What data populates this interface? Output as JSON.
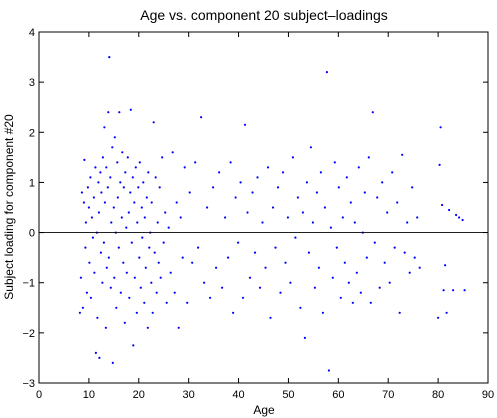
{
  "chart_data": {
    "type": "scatter",
    "title": "Age vs. component 20 subject–loadings",
    "xlabel": "Age",
    "ylabel": "Subject loading for component #20",
    "xlim": [
      0,
      90
    ],
    "ylim": [
      -3,
      4
    ],
    "xticks": [
      0,
      10,
      20,
      30,
      40,
      50,
      60,
      70,
      80,
      90
    ],
    "yticks": [
      -3,
      -2,
      -1,
      0,
      1,
      2,
      3,
      4
    ],
    "grid": false,
    "reference_line_y": 0,
    "marker_color": "#0000ff",
    "axis_color": "#000000",
    "points": [
      [
        8.2,
        -1.6
      ],
      [
        8.4,
        -0.9
      ],
      [
        8.6,
        0.8
      ],
      [
        8.8,
        -1.5
      ],
      [
        9.0,
        0.6
      ],
      [
        9.1,
        1.45
      ],
      [
        9.3,
        -0.3
      ],
      [
        9.4,
        0.2
      ],
      [
        9.6,
        -1.2
      ],
      [
        9.8,
        0.9
      ],
      [
        10.0,
        0.5
      ],
      [
        10.1,
        -0.6
      ],
      [
        10.3,
        1.1
      ],
      [
        10.4,
        -1.3
      ],
      [
        10.6,
        0.3
      ],
      [
        10.8,
        -0.1
      ],
      [
        11.0,
        0.7
      ],
      [
        11.1,
        -0.8
      ],
      [
        11.3,
        1.3
      ],
      [
        11.4,
        -2.4
      ],
      [
        11.6,
        0.0
      ],
      [
        11.7,
        -1.7
      ],
      [
        11.9,
        1.0
      ],
      [
        12.0,
        0.4
      ],
      [
        12.1,
        -2.5
      ],
      [
        12.3,
        1.2
      ],
      [
        12.4,
        -0.4
      ],
      [
        12.5,
        0.8
      ],
      [
        12.7,
        -1.0
      ],
      [
        12.8,
        1.5
      ],
      [
        13.0,
        -0.2
      ],
      [
        13.1,
        2.1
      ],
      [
        13.2,
        0.6
      ],
      [
        13.4,
        -1.9
      ],
      [
        13.5,
        1.3
      ],
      [
        13.6,
        -0.7
      ],
      [
        13.8,
        0.9
      ],
      [
        13.9,
        2.4
      ],
      [
        14.0,
        -0.5
      ],
      [
        14.1,
        3.5
      ],
      [
        14.3,
        1.1
      ],
      [
        14.4,
        -1.1
      ],
      [
        14.5,
        0.2
      ],
      [
        14.7,
        1.7
      ],
      [
        14.8,
        -2.6
      ],
      [
        15.0,
        0.5
      ],
      [
        15.1,
        -0.9
      ],
      [
        15.2,
        1.9
      ],
      [
        15.4,
        0.0
      ],
      [
        15.5,
        -1.5
      ],
      [
        15.7,
        1.4
      ],
      [
        15.8,
        0.7
      ],
      [
        16.0,
        -0.3
      ],
      [
        16.1,
        2.4
      ],
      [
        16.3,
        1.0
      ],
      [
        16.4,
        -1.2
      ],
      [
        16.6,
        0.3
      ],
      [
        16.7,
        1.6
      ],
      [
        16.9,
        -0.6
      ],
      [
        17.0,
        0.9
      ],
      [
        17.2,
        -1.8
      ],
      [
        17.3,
        1.2
      ],
      [
        17.5,
        0.1
      ],
      [
        17.6,
        -0.8
      ],
      [
        17.8,
        1.5
      ],
      [
        18.0,
        0.4
      ],
      [
        18.1,
        -1.3
      ],
      [
        18.3,
        0.8
      ],
      [
        18.4,
        2.45
      ],
      [
        18.6,
        -0.2
      ],
      [
        18.8,
        1.1
      ],
      [
        18.9,
        -2.25
      ],
      [
        19.1,
        0.6
      ],
      [
        19.2,
        -0.9
      ],
      [
        19.4,
        1.3
      ],
      [
        19.6,
        -1.6
      ],
      [
        19.7,
        0.2
      ],
      [
        19.9,
        0.9
      ],
      [
        20.1,
        -0.5
      ],
      [
        20.2,
        1.4
      ],
      [
        20.4,
        -1.1
      ],
      [
        20.6,
        0.5
      ],
      [
        20.7,
        -0.1
      ],
      [
        20.9,
        1.0
      ],
      [
        21.1,
        -1.4
      ],
      [
        21.2,
        0.3
      ],
      [
        21.4,
        -0.7
      ],
      [
        21.6,
        0.7
      ],
      [
        21.8,
        -1.9
      ],
      [
        21.9,
        1.2
      ],
      [
        22.1,
        -0.3
      ],
      [
        22.3,
        0.0
      ],
      [
        22.5,
        -1.0
      ],
      [
        22.6,
        0.6
      ],
      [
        22.8,
        -1.6
      ],
      [
        23.0,
        2.2
      ],
      [
        23.2,
        -0.4
      ],
      [
        23.4,
        1.1
      ],
      [
        23.6,
        -1.2
      ],
      [
        23.8,
        0.2
      ],
      [
        24.0,
        -0.6
      ],
      [
        24.2,
        0.9
      ],
      [
        24.4,
        -0.9
      ],
      [
        24.7,
        1.5
      ],
      [
        25.0,
        -0.2
      ],
      [
        25.3,
        0.4
      ],
      [
        25.6,
        -1.4
      ],
      [
        26.0,
        0.1
      ],
      [
        26.4,
        -0.8
      ],
      [
        26.8,
        1.6
      ],
      [
        27.2,
        -1.2
      ],
      [
        27.6,
        0.6
      ],
      [
        28.0,
        -1.9
      ],
      [
        28.4,
        0.3
      ],
      [
        28.8,
        -0.5
      ],
      [
        29.2,
        1.3
      ],
      [
        29.7,
        -1.4
      ],
      [
        30.2,
        0.8
      ],
      [
        30.7,
        -0.6
      ],
      [
        31.3,
        1.4
      ],
      [
        31.9,
        -0.3
      ],
      [
        32.5,
        2.3
      ],
      [
        33.1,
        -1.0
      ],
      [
        33.7,
        0.5
      ],
      [
        34.3,
        -1.3
      ],
      [
        34.9,
        0.9
      ],
      [
        35.5,
        -0.7
      ],
      [
        36.1,
        1.2
      ],
      [
        36.7,
        -1.1
      ],
      [
        37.3,
        0.3
      ],
      [
        37.9,
        -0.5
      ],
      [
        38.4,
        1.4
      ],
      [
        38.9,
        -1.6
      ],
      [
        39.4,
        0.7
      ],
      [
        39.9,
        -0.2
      ],
      [
        40.4,
        1.0
      ],
      [
        40.9,
        -1.3
      ],
      [
        41.3,
        2.15
      ],
      [
        41.8,
        0.4
      ],
      [
        42.3,
        -0.9
      ],
      [
        42.8,
        0.8
      ],
      [
        43.3,
        -0.4
      ],
      [
        43.8,
        1.1
      ],
      [
        44.3,
        -1.1
      ],
      [
        44.8,
        0.2
      ],
      [
        45.4,
        -0.7
      ],
      [
        45.9,
        1.3
      ],
      [
        46.4,
        -1.7
      ],
      [
        46.9,
        0.5
      ],
      [
        47.4,
        -0.3
      ],
      [
        47.9,
        0.9
      ],
      [
        48.4,
        -1.2
      ],
      [
        48.9,
        1.2
      ],
      [
        49.4,
        -0.6
      ],
      [
        49.9,
        0.3
      ],
      [
        50.4,
        -1.0
      ],
      [
        50.9,
        1.5
      ],
      [
        51.4,
        -0.1
      ],
      [
        51.9,
        0.7
      ],
      [
        52.4,
        -1.5
      ],
      [
        52.9,
        0.4
      ],
      [
        53.3,
        -2.1
      ],
      [
        53.7,
        1.0
      ],
      [
        54.1,
        -0.4
      ],
      [
        54.5,
        1.7
      ],
      [
        54.9,
        0.2
      ],
      [
        55.3,
        -1.1
      ],
      [
        55.7,
        0.8
      ],
      [
        56.1,
        -0.7
      ],
      [
        56.5,
        1.2
      ],
      [
        56.9,
        -1.6
      ],
      [
        57.3,
        0.5
      ],
      [
        57.7,
        3.2
      ],
      [
        58.1,
        -2.75
      ],
      [
        58.5,
        0.1
      ],
      [
        58.9,
        -0.9
      ],
      [
        59.3,
        1.4
      ],
      [
        59.7,
        -0.3
      ],
      [
        60.1,
        0.9
      ],
      [
        60.5,
        -1.3
      ],
      [
        60.9,
        0.3
      ],
      [
        61.3,
        -0.6
      ],
      [
        61.7,
        1.1
      ],
      [
        62.1,
        -1.0
      ],
      [
        62.5,
        0.6
      ],
      [
        62.9,
        -1.4
      ],
      [
        63.3,
        0.2
      ],
      [
        63.7,
        -0.8
      ],
      [
        64.1,
        1.3
      ],
      [
        64.5,
        -1.2
      ],
      [
        64.9,
        0.0
      ],
      [
        65.3,
        0.8
      ],
      [
        65.7,
        -0.5
      ],
      [
        66.1,
        1.5
      ],
      [
        66.5,
        -1.4
      ],
      [
        66.9,
        2.4
      ],
      [
        67.3,
        -0.2
      ],
      [
        67.8,
        0.7
      ],
      [
        68.3,
        -1.1
      ],
      [
        68.8,
        1.0
      ],
      [
        69.3,
        -0.6
      ],
      [
        69.8,
        0.4
      ],
      [
        70.3,
        -1.0
      ],
      [
        70.8,
        1.2
      ],
      [
        71.3,
        -0.3
      ],
      [
        71.8,
        0.6
      ],
      [
        72.3,
        -1.6
      ],
      [
        72.8,
        1.55
      ],
      [
        73.3,
        -0.4
      ],
      [
        73.8,
        0.2
      ],
      [
        74.3,
        -0.8
      ],
      [
        74.8,
        0.9
      ],
      [
        75.3,
        -0.5
      ],
      [
        75.8,
        0.3
      ],
      [
        76.3,
        -0.7
      ],
      [
        80.0,
        -1.7
      ],
      [
        80.3,
        1.35
      ],
      [
        80.5,
        2.1
      ],
      [
        80.8,
        0.55
      ],
      [
        81.1,
        -1.15
      ],
      [
        81.4,
        -0.65
      ],
      [
        81.7,
        -1.6
      ],
      [
        82.2,
        0.45
      ],
      [
        83.0,
        -1.15
      ],
      [
        83.6,
        0.35
      ],
      [
        84.2,
        0.3
      ],
      [
        84.9,
        0.25
      ],
      [
        85.3,
        -1.15
      ]
    ]
  }
}
